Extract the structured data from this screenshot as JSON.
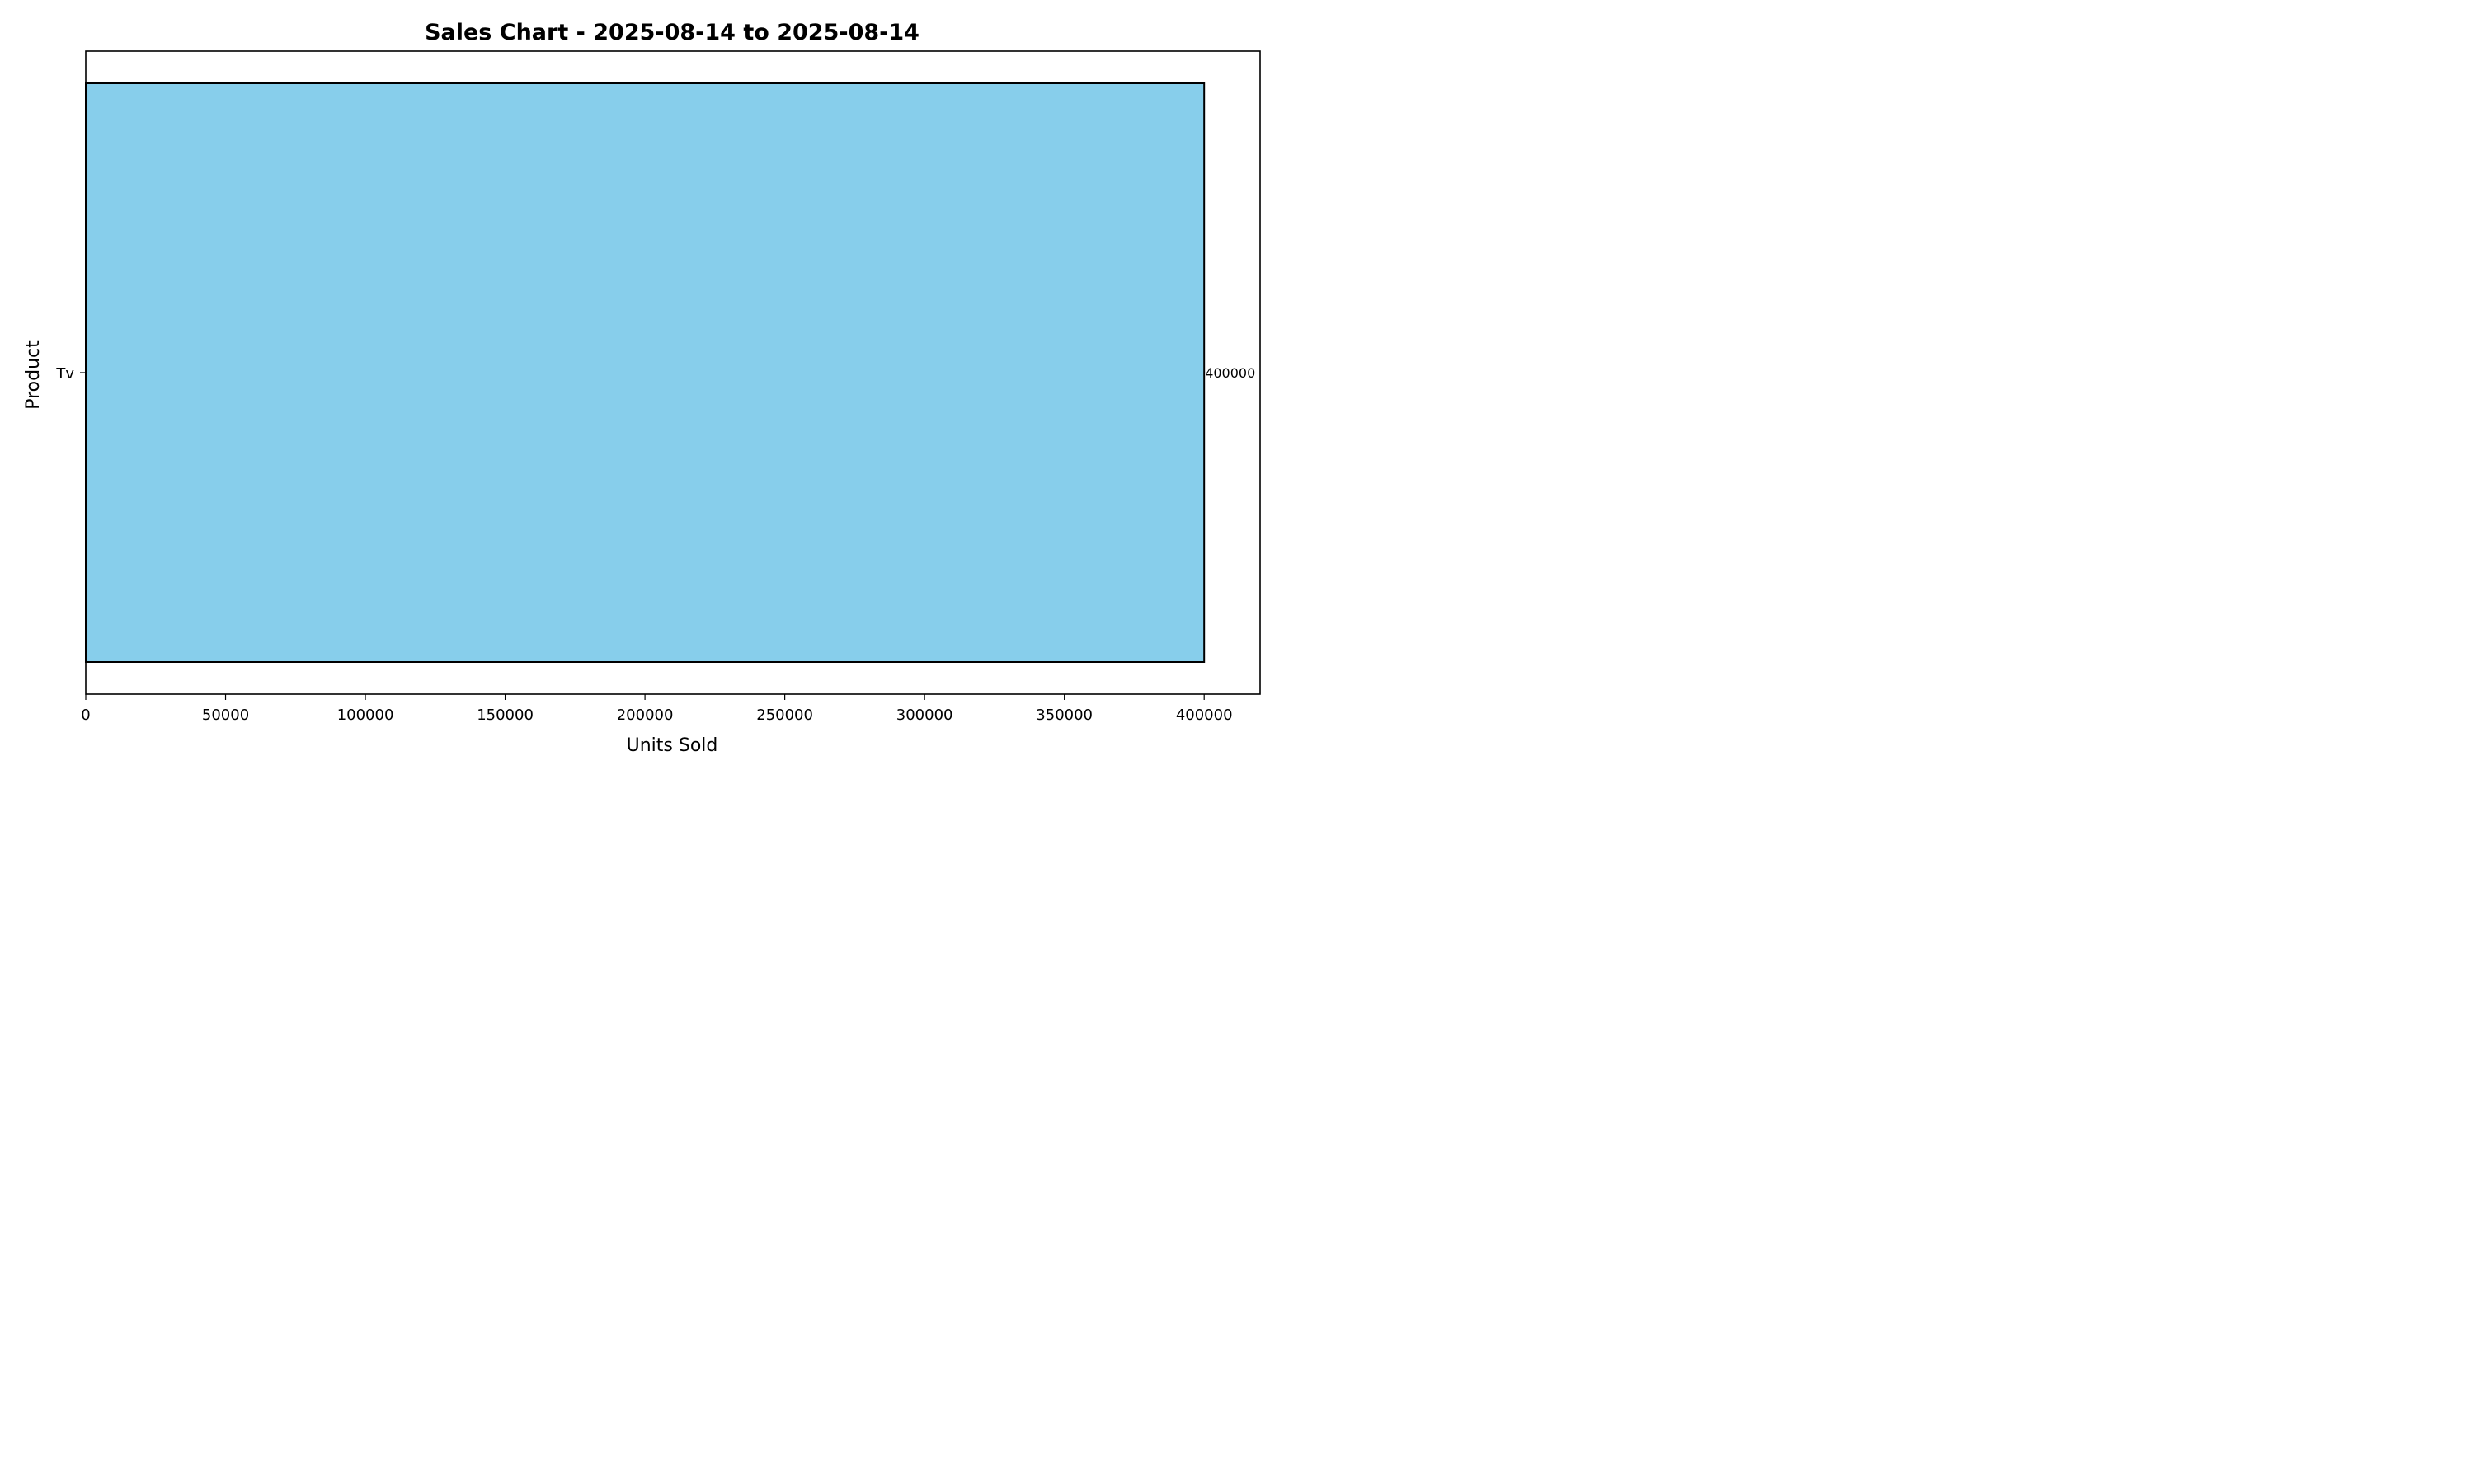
{
  "chart_data": {
    "type": "bar",
    "orientation": "horizontal",
    "title": "Sales Chart - 2025-08-14 to 2025-08-14",
    "xlabel": "Units Sold",
    "ylabel": "Product",
    "categories": [
      "Tv"
    ],
    "values": [
      400000
    ],
    "data_labels": [
      "400000"
    ],
    "xlim": [
      0,
      420000
    ],
    "xticks": [
      0,
      50000,
      100000,
      150000,
      200000,
      250000,
      300000,
      350000,
      400000
    ],
    "xtick_labels": [
      "0",
      "50000",
      "100000",
      "150000",
      "200000",
      "250000",
      "300000",
      "350000",
      "400000"
    ],
    "grid": false,
    "legend": "none",
    "bar_color": "#87CEEB",
    "bar_edge_color": "#000000"
  }
}
